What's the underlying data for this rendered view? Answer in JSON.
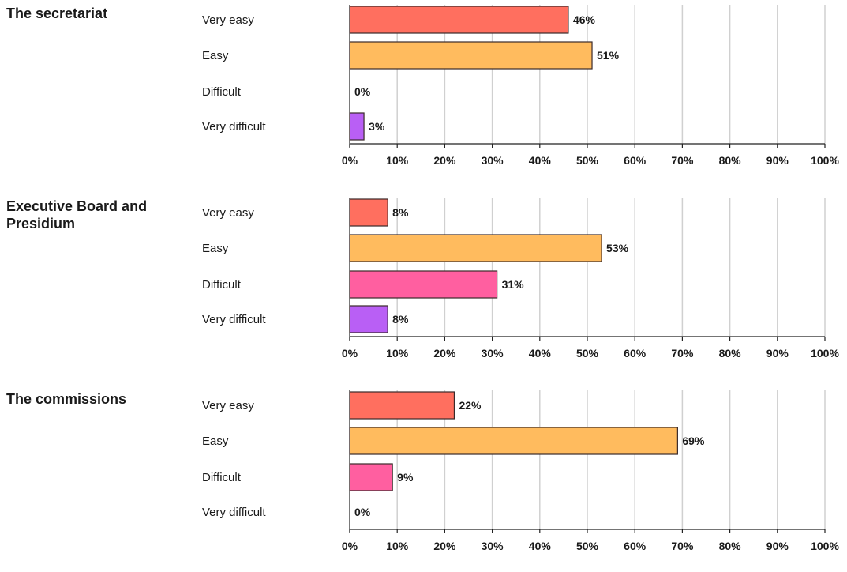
{
  "chart_data": [
    {
      "type": "bar",
      "orientation": "horizontal",
      "title": "The secretariat",
      "categories": [
        "Very easy",
        "Easy",
        "Difficult",
        "Very difficult"
      ],
      "values": [
        46,
        51,
        0,
        3
      ],
      "value_labels": [
        "46%",
        "51%",
        "0%",
        "3%"
      ],
      "xlim": [
        0,
        100
      ],
      "xticks": [
        "0%",
        "10%",
        "20%",
        "30%",
        "40%",
        "50%",
        "60%",
        "70%",
        "80%",
        "90%",
        "100%"
      ],
      "grid": true
    },
    {
      "type": "bar",
      "orientation": "horizontal",
      "title": "Executive Board and Presidium",
      "categories": [
        "Very easy",
        "Easy",
        "Difficult",
        "Very difficult"
      ],
      "values": [
        8,
        53,
        31,
        8
      ],
      "value_labels": [
        "8%",
        "53%",
        "31%",
        "8%"
      ],
      "xlim": [
        0,
        100
      ],
      "xticks": [
        "0%",
        "10%",
        "20%",
        "30%",
        "40%",
        "50%",
        "60%",
        "70%",
        "80%",
        "90%",
        "100%"
      ],
      "grid": true
    },
    {
      "type": "bar",
      "orientation": "horizontal",
      "title": "The commissions",
      "categories": [
        "Very easy",
        "Easy",
        "Difficult",
        "Very difficult"
      ],
      "values": [
        22,
        69,
        9,
        0
      ],
      "value_labels": [
        "22%",
        "69%",
        "9%",
        "0%"
      ],
      "xlim": [
        0,
        100
      ],
      "xticks": [
        "0%",
        "10%",
        "20%",
        "30%",
        "40%",
        "50%",
        "60%",
        "70%",
        "80%",
        "90%",
        "100%"
      ],
      "grid": true
    }
  ],
  "colors": {
    "very_easy": "#ff6f5f",
    "easy": "#ffbb5e",
    "difficult": "#ff5fa0",
    "very_difficult": "#b95ff5",
    "bar_border": "#3a2a2a",
    "grid": "#d0d0d0",
    "axis": "#222222"
  }
}
